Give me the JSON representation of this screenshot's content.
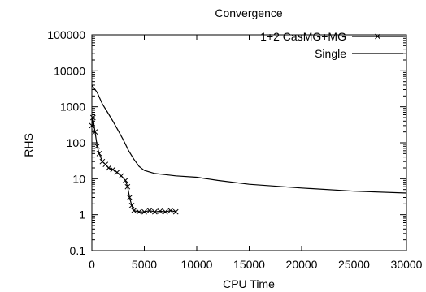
{
  "chart_data": {
    "type": "line",
    "title": "Convergence",
    "xlabel": "CPU Time",
    "ylabel": "RHS",
    "xlim": [
      0,
      30000
    ],
    "ylim": [
      0.1,
      100000
    ],
    "yscale": "log",
    "grid": false,
    "legend_position": "top-right",
    "x_ticks": [
      0,
      5000,
      10000,
      15000,
      20000,
      25000,
      30000
    ],
    "x_tick_labels": [
      "0",
      "5000",
      "10000",
      "15000",
      "20000",
      "25000",
      "30000"
    ],
    "y_ticks": [
      0.1,
      1,
      10,
      100,
      1000,
      10000,
      100000
    ],
    "y_tick_labels": [
      "0.1",
      "1",
      "10",
      "100",
      "1000",
      "10000",
      "100000"
    ],
    "series": [
      {
        "name": "1+2 CasMG+MG",
        "marker": "x",
        "color": "#000000",
        "x": [
          0,
          100,
          300,
          500,
          700,
          1000,
          1300,
          1600,
          2000,
          2400,
          2800,
          3200,
          3400,
          3600,
          3800,
          4000,
          4500,
          5000,
          5500,
          6000,
          6500,
          7000,
          7500,
          8000
        ],
        "y": [
          300,
          500,
          200,
          80,
          50,
          30,
          25,
          20,
          18,
          15,
          12,
          9,
          6,
          3,
          1.8,
          1.3,
          1.2,
          1.2,
          1.3,
          1.2,
          1.25,
          1.2,
          1.3,
          1.2
        ]
      },
      {
        "name": "Single",
        "marker": "none",
        "color": "#000000",
        "x": [
          0,
          500,
          1000,
          1500,
          2000,
          2500,
          3000,
          3500,
          4000,
          4500,
          5000,
          6000,
          7000,
          8000,
          10000,
          12000,
          15000,
          20000,
          25000,
          30000
        ],
        "y": [
          4000,
          2500,
          1200,
          700,
          400,
          220,
          120,
          60,
          35,
          22,
          17,
          14,
          13,
          12,
          11,
          9,
          7,
          5.5,
          4.5,
          4
        ]
      }
    ]
  }
}
